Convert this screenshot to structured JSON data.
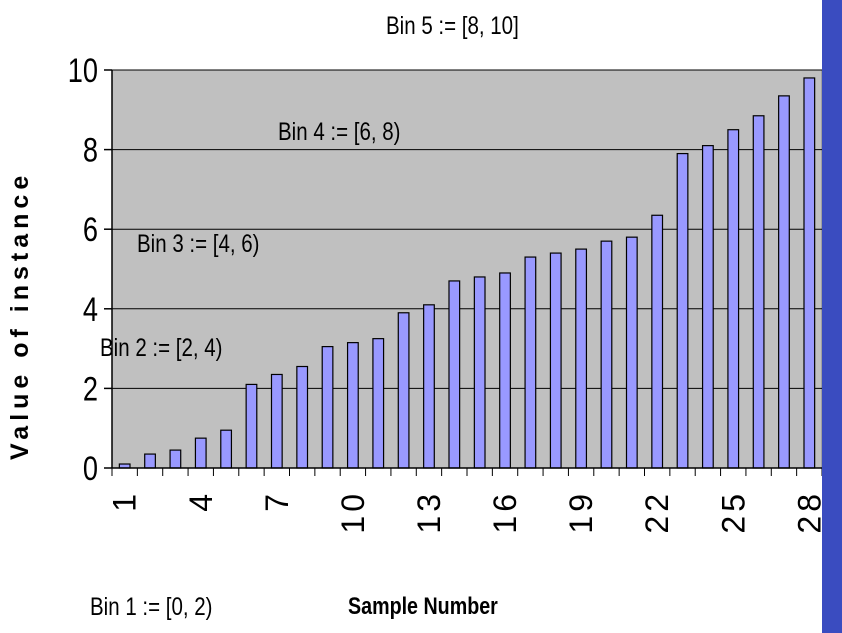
{
  "colors": {
    "plot_background": "#c0c0c0",
    "bar_fill": "#9999ff",
    "bar_stroke": "#000000",
    "side_accent": "#3a4cc0"
  },
  "annotations": {
    "bin1": "Bin 1 := [0, 2)",
    "bin2": "Bin 2 := [2, 4)",
    "bin3": "Bin 3 := [4, 6)",
    "bin4": "Bin 4 := [6, 8)",
    "bin5": "Bin 5 := [8, 10]"
  },
  "chart_data": {
    "type": "bar",
    "title": "",
    "xlabel": "Sample Number",
    "ylabel": "Value of instance",
    "categories": [
      1,
      2,
      3,
      4,
      5,
      6,
      7,
      8,
      9,
      10,
      11,
      12,
      13,
      14,
      15,
      16,
      17,
      18,
      19,
      20,
      21,
      22,
      23,
      24,
      25,
      26,
      27,
      28
    ],
    "x_tick_labels": [
      "1",
      "4",
      "7",
      "10",
      "13",
      "16",
      "19",
      "22",
      "25",
      "28"
    ],
    "y_tick_labels": [
      "0",
      "2",
      "4",
      "6",
      "8",
      "10"
    ],
    "values": [
      0.1,
      0.35,
      0.45,
      0.75,
      0.95,
      2.1,
      2.35,
      2.55,
      3.05,
      3.15,
      3.25,
      3.9,
      4.1,
      4.7,
      4.8,
      4.9,
      5.3,
      5.4,
      5.5,
      5.7,
      5.8,
      6.35,
      7.9,
      8.1,
      8.5,
      8.85,
      9.35,
      9.8
    ],
    "ylim": [
      0,
      10
    ],
    "grid": true,
    "legend": "none"
  }
}
